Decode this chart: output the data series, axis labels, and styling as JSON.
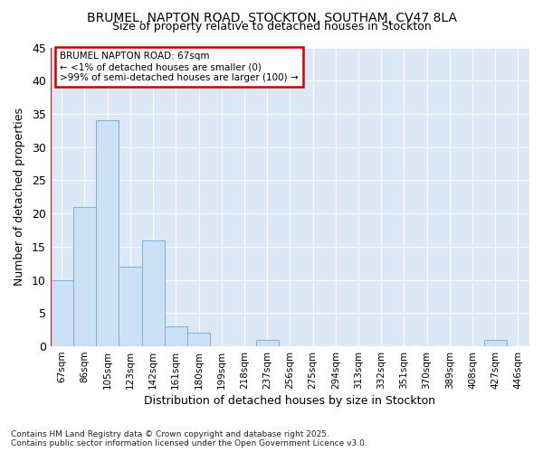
{
  "title1": "BRUMEL, NAPTON ROAD, STOCKTON, SOUTHAM, CV47 8LA",
  "title2": "Size of property relative to detached houses in Stockton",
  "xlabel": "Distribution of detached houses by size in Stockton",
  "ylabel": "Number of detached properties",
  "categories": [
    "67sqm",
    "86sqm",
    "105sqm",
    "123sqm",
    "142sqm",
    "161sqm",
    "180sqm",
    "199sqm",
    "218sqm",
    "237sqm",
    "256sqm",
    "275sqm",
    "294sqm",
    "313sqm",
    "332sqm",
    "351sqm",
    "370sqm",
    "389sqm",
    "408sqm",
    "427sqm",
    "446sqm"
  ],
  "values": [
    10,
    21,
    34,
    12,
    16,
    3,
    2,
    0,
    0,
    1,
    0,
    0,
    0,
    0,
    0,
    0,
    0,
    0,
    0,
    1,
    0
  ],
  "bar_color": "#cce0f5",
  "bar_edge_color": "#7ab0d8",
  "highlight_color": "#ff0000",
  "ylim": [
    0,
    45
  ],
  "yticks": [
    0,
    5,
    10,
    15,
    20,
    25,
    30,
    35,
    40,
    45
  ],
  "annotation_title": "BRUMEL NAPTON ROAD: 67sqm",
  "annotation_line1": "← <1% of detached houses are smaller (0)",
  "annotation_line2": ">99% of semi-detached houses are larger (100) →",
  "annotation_box_color": "#ffffff",
  "annotation_border_color": "#cc0000",
  "fig_bg_color": "#ffffff",
  "plot_bg_color": "#dce8f5",
  "grid_color": "#ffffff",
  "footer1": "Contains HM Land Registry data © Crown copyright and database right 2025.",
  "footer2": "Contains public sector information licensed under the Open Government Licence v3.0."
}
